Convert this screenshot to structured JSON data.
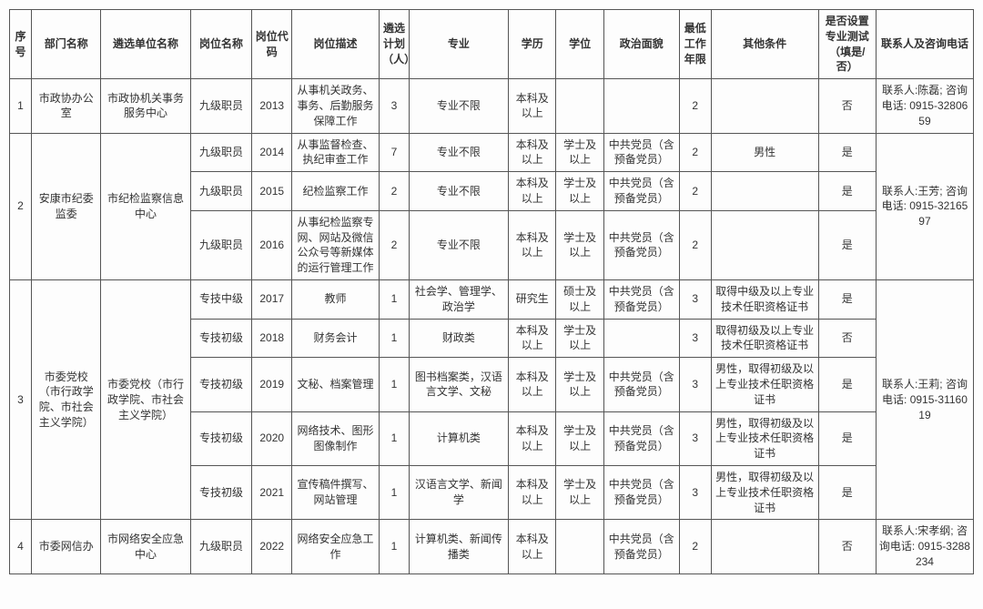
{
  "headers": {
    "seq": "序号",
    "dept": "部门名称",
    "unit": "遴选单位名称",
    "pos": "岗位名称",
    "code": "岗位代码",
    "desc": "岗位描述",
    "plan": "遴选计划（人）",
    "major": "专业",
    "edu": "学历",
    "deg": "学位",
    "pol": "政治面貌",
    "min": "最低工作年限",
    "other": "其他条件",
    "test": "是否设置专业测试（填是/否）",
    "contact": "联系人及咨询电话"
  },
  "rows": [
    {
      "seq": "1",
      "dept": "市政协办公室",
      "unit": "市政协机关事务服务中心",
      "pos": "九级职员",
      "code": "2013",
      "desc": "从事机关政务、事务、后勤服务保障工作",
      "plan": "3",
      "major": "专业不限",
      "edu": "本科及以上",
      "deg": "",
      "pol": "",
      "min": "2",
      "other": "",
      "test": "否",
      "contact": "联系人:陈磊; 咨询电话: 0915-3280659"
    },
    {
      "seq": "2",
      "dept": "安康市纪委监委",
      "unit": "市纪检监察信息中心",
      "pos": "九级职员",
      "code": "2014",
      "desc": "从事监督检查、执纪审查工作",
      "plan": "7",
      "major": "专业不限",
      "edu": "本科及以上",
      "deg": "学士及以上",
      "pol": "中共党员（含预备党员）",
      "min": "2",
      "other": "男性",
      "test": "是",
      "contact": "联系人:王芳; 咨询电话: 0915-3216597"
    },
    {
      "pos": "九级职员",
      "code": "2015",
      "desc": "纪检监察工作",
      "plan": "2",
      "major": "专业不限",
      "edu": "本科及以上",
      "deg": "学士及以上",
      "pol": "中共党员（含预备党员）",
      "min": "2",
      "other": "",
      "test": "是"
    },
    {
      "pos": "九级职员",
      "code": "2016",
      "desc": "从事纪检监察专网、网站及微信公众号等新媒体的运行管理工作",
      "plan": "2",
      "major": "专业不限",
      "edu": "本科及以上",
      "deg": "学士及以上",
      "pol": "中共党员（含预备党员）",
      "min": "2",
      "other": "",
      "test": "是"
    },
    {
      "seq": "3",
      "dept": "市委党校（市行政学院、市社会主义学院）",
      "unit": "市委党校（市行政学院、市社会主义学院）",
      "pos": "专技中级",
      "code": "2017",
      "desc": "教师",
      "plan": "1",
      "major": "社会学、管理学、政治学",
      "edu": "研究生",
      "deg": "硕士及以上",
      "pol": "中共党员（含预备党员）",
      "min": "3",
      "other": "取得中级及以上专业技术任职资格证书",
      "test": "是",
      "contact": "联系人:王莉; 咨询电话: 0915-3116019"
    },
    {
      "pos": "专技初级",
      "code": "2018",
      "desc": "财务会计",
      "plan": "1",
      "major": "财政类",
      "edu": "本科及以上",
      "deg": "学士及以上",
      "pol": "",
      "min": "3",
      "other": "取得初级及以上专业技术任职资格证书",
      "test": "否"
    },
    {
      "pos": "专技初级",
      "code": "2019",
      "desc": "文秘、档案管理",
      "plan": "1",
      "major": "图书档案类，汉语言文学、文秘",
      "edu": "本科及以上",
      "deg": "学士及以上",
      "pol": "中共党员（含预备党员）",
      "min": "3",
      "other": "男性，取得初级及以上专业技术任职资格证书",
      "test": "是"
    },
    {
      "pos": "专技初级",
      "code": "2020",
      "desc": "网络技术、图形图像制作",
      "plan": "1",
      "major": "计算机类",
      "edu": "本科及以上",
      "deg": "学士及以上",
      "pol": "中共党员（含预备党员）",
      "min": "3",
      "other": "男性，取得初级及以上专业技术任职资格证书",
      "test": "是"
    },
    {
      "pos": "专技初级",
      "code": "2021",
      "desc": "宣传稿件撰写、网站管理",
      "plan": "1",
      "major": "汉语言文学、新闻学",
      "edu": "本科及以上",
      "deg": "学士及以上",
      "pol": "中共党员（含预备党员）",
      "min": "3",
      "other": "男性，取得初级及以上专业技术任职资格证书",
      "test": "是"
    },
    {
      "seq": "4",
      "dept": "市委网信办",
      "unit": "市网络安全应急中心",
      "pos": "九级职员",
      "code": "2022",
      "desc": "网络安全应急工作",
      "plan": "1",
      "major": "计算机类、新闻传播类",
      "edu": "本科及以上",
      "deg": "",
      "pol": "中共党员（含预备党员）",
      "min": "2",
      "other": "",
      "test": "否",
      "contact": "联系人:宋孝纲; 咨询电话: 0915-3288234"
    }
  ]
}
